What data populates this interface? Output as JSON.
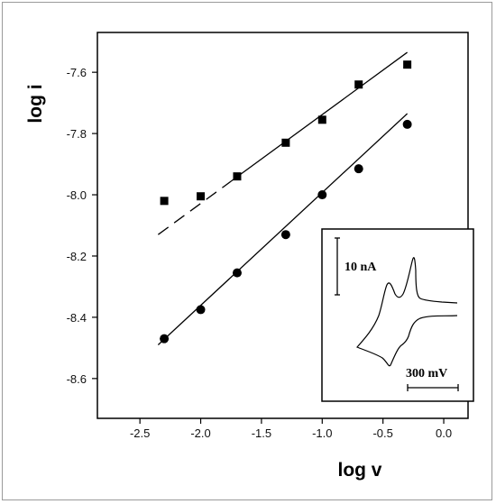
{
  "chart_data": {
    "type": "scatter",
    "xlabel": "log v",
    "ylabel": "log i",
    "xlim": [
      -2.85,
      0.2
    ],
    "ylim": [
      -8.73,
      -7.47
    ],
    "xticks": [
      "-2.5",
      "-2.0",
      "-1.5",
      "-1.0",
      "-0.5",
      "0.0"
    ],
    "yticks": [
      "-7.6",
      "-7.8",
      "-8.0",
      "-8.2",
      "-8.4",
      "-8.6"
    ],
    "grid": false,
    "series": [
      {
        "marker": "square",
        "x": [
          -2.3,
          -2.0,
          -1.7,
          -1.3,
          -1.0,
          -0.7,
          -0.3
        ],
        "y": [
          -8.02,
          -8.005,
          -7.94,
          -7.83,
          -7.755,
          -7.64,
          -7.575
        ],
        "fit": {
          "x": [
            -2.35,
            -0.3
          ],
          "y": [
            -8.13,
            -7.535
          ],
          "dashed_until_x": -1.75
        }
      },
      {
        "marker": "circle",
        "x": [
          -2.3,
          -2.0,
          -1.7,
          -1.3,
          -1.0,
          -0.7,
          -0.3
        ],
        "y": [
          -8.47,
          -8.375,
          -8.255,
          -8.13,
          -8.0,
          -7.915,
          -7.77
        ],
        "fit": {
          "x": [
            -2.35,
            -0.3
          ],
          "y": [
            -8.49,
            -7.735
          ]
        }
      }
    ],
    "inset": {
      "type": "cyclic-voltammogram",
      "scale_current": "10 nA",
      "scale_potential": "300 mV"
    }
  }
}
